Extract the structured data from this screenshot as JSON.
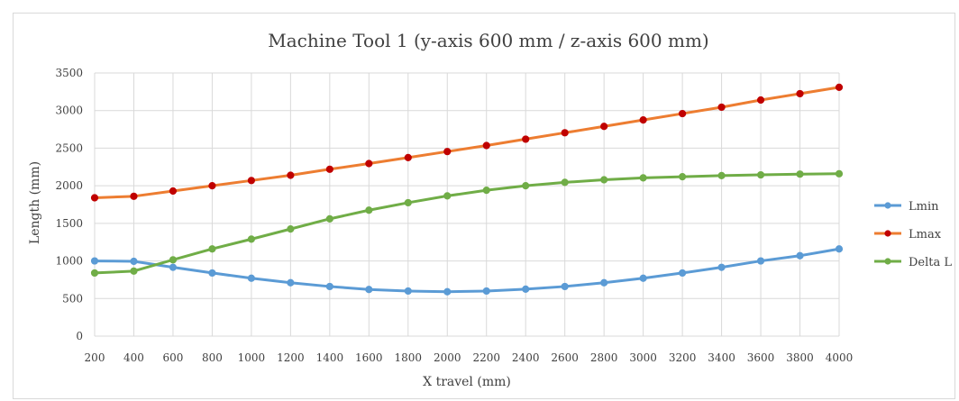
{
  "chart_data": {
    "type": "line",
    "title": "Machine Tool 1 (y-axis 600 mm / z-axis 600 mm)",
    "xlabel": "X travel (mm)",
    "ylabel": "Length (mm)",
    "x": [
      200,
      400,
      600,
      800,
      1000,
      1200,
      1400,
      1600,
      1800,
      2000,
      2200,
      2400,
      2600,
      2800,
      3000,
      3200,
      3400,
      3600,
      3800,
      4000
    ],
    "ylim": [
      0,
      3500
    ],
    "yticks": [
      0,
      500,
      1000,
      1500,
      2000,
      2500,
      3000,
      3500
    ],
    "grid": true,
    "legend_position": "right",
    "series": [
      {
        "name": "Lmin",
        "color": "#5b9bd5",
        "values": [
          1000,
          995,
          915,
          840,
          770,
          710,
          660,
          620,
          600,
          590,
          600,
          625,
          660,
          710,
          770,
          840,
          915,
          1000,
          1070,
          1160
        ]
      },
      {
        "name": "Lmax",
        "color": "#ed7d31",
        "marker_color": "#c00000",
        "values": [
          1840,
          1860,
          1930,
          2000,
          2070,
          2140,
          2220,
          2295,
          2375,
          2455,
          2535,
          2620,
          2705,
          2790,
          2875,
          2960,
          3045,
          3140,
          3225,
          3310
        ]
      },
      {
        "name": "Delta L",
        "color": "#70ad47",
        "values": [
          840,
          865,
          1015,
          1160,
          1290,
          1425,
          1560,
          1675,
          1775,
          1865,
          1940,
          2000,
          2045,
          2080,
          2105,
          2120,
          2135,
          2145,
          2155,
          2160
        ]
      }
    ]
  }
}
